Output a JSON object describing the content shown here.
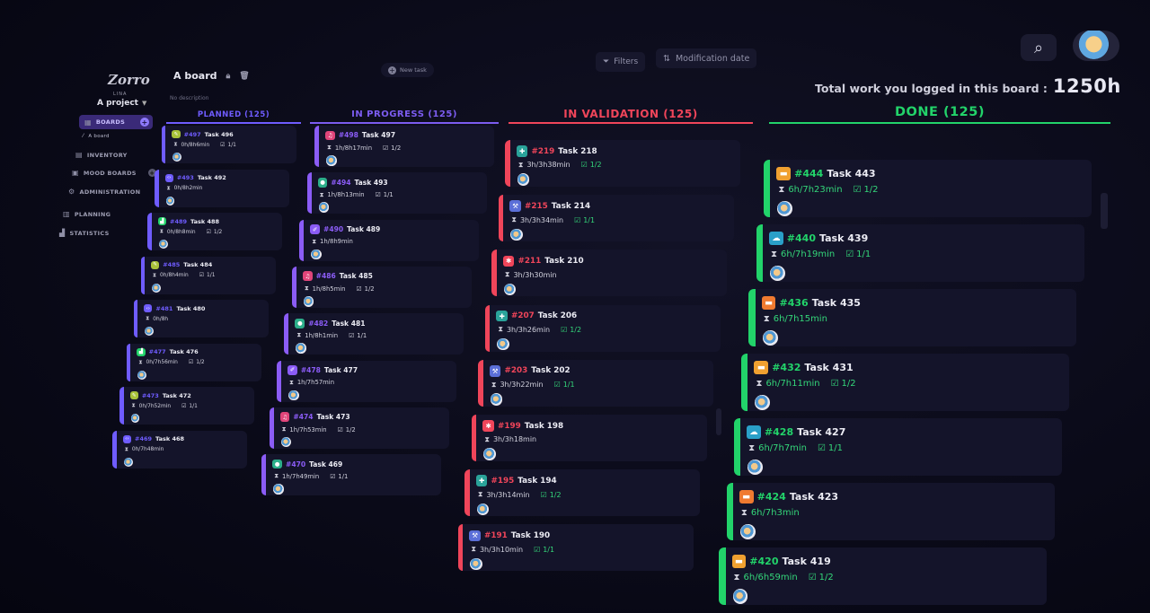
{
  "project": {
    "logo_text": "Zorro",
    "logo_sub": "LINA",
    "name": "A project"
  },
  "sidebar": {
    "boards": "BOARDS",
    "boards_sub": "A board",
    "inventory": "INVENTORY",
    "moodboards": "MOOD BOARDS",
    "administration": "ADMINISTRATION",
    "planning": "PLANNING",
    "statistics": "STATISTICS"
  },
  "header": {
    "board_title": "A board",
    "board_description": "No description",
    "new_task": "New task",
    "filters": "Filters",
    "modification_date": "Modification date",
    "total_work_label": "Total work you logged in this board :",
    "total_work_value": "1250h"
  },
  "colors": {
    "planned": "#6f5cff",
    "in_progress": "#8b5cf6",
    "in_validation": "#f0455a",
    "done": "#22d36a",
    "bg": "#0a0a18",
    "card": "#14142a"
  },
  "columns": [
    {
      "key": "planned",
      "header": "PLANNED (125)",
      "cards": [
        {
          "num": "#497",
          "title": "Task 496",
          "time": "0h/8h6min",
          "check": "1/1",
          "icon": "brush",
          "icon_color": "#a8c23a"
        },
        {
          "num": "#493",
          "title": "Task 492",
          "time": "0h/8h2min",
          "check": "",
          "icon": "code",
          "icon_color": "#6f5cff"
        },
        {
          "num": "#489",
          "title": "Task 488",
          "time": "0h/8h8min",
          "check": "1/2",
          "icon": "chart",
          "icon_color": "#22d36a"
        },
        {
          "num": "#485",
          "title": "Task 484",
          "time": "0h/8h4min",
          "check": "1/1",
          "icon": "brush",
          "icon_color": "#a8c23a"
        },
        {
          "num": "#481",
          "title": "Task 480",
          "time": "0h/8h",
          "check": "",
          "icon": "code",
          "icon_color": "#6f5cff"
        },
        {
          "num": "#477",
          "title": "Task 476",
          "time": "0h/7h56min",
          "check": "1/2",
          "icon": "chart",
          "icon_color": "#22d36a"
        },
        {
          "num": "#473",
          "title": "Task 472",
          "time": "0h/7h52min",
          "check": "1/1",
          "icon": "brush",
          "icon_color": "#a8c23a"
        },
        {
          "num": "#469",
          "title": "Task 468",
          "time": "0h/7h48min",
          "check": "",
          "icon": "code",
          "icon_color": "#6f5cff"
        }
      ]
    },
    {
      "key": "in_progress",
      "header": "IN PROGRESS (125)",
      "cards": [
        {
          "num": "#498",
          "title": "Task 497",
          "time": "1h/8h17min",
          "check": "1/2",
          "icon": "music",
          "icon_color": "#e0457a"
        },
        {
          "num": "#494",
          "title": "Task 493",
          "time": "1h/8h13min",
          "check": "1/1",
          "icon": "chat",
          "icon_color": "#2cae8a"
        },
        {
          "num": "#490",
          "title": "Task 489",
          "time": "1h/8h9min",
          "check": "",
          "icon": "pen",
          "icon_color": "#8b5cf6"
        },
        {
          "num": "#486",
          "title": "Task 485",
          "time": "1h/8h5min",
          "check": "1/2",
          "icon": "music",
          "icon_color": "#e0457a"
        },
        {
          "num": "#482",
          "title": "Task 481",
          "time": "1h/8h1min",
          "check": "1/1",
          "icon": "chat",
          "icon_color": "#2cae8a"
        },
        {
          "num": "#478",
          "title": "Task 477",
          "time": "1h/7h57min",
          "check": "",
          "icon": "pen",
          "icon_color": "#8b5cf6"
        },
        {
          "num": "#474",
          "title": "Task 473",
          "time": "1h/7h53min",
          "check": "1/2",
          "icon": "music",
          "icon_color": "#e0457a"
        },
        {
          "num": "#470",
          "title": "Task 469",
          "time": "1h/7h49min",
          "check": "1/1",
          "icon": "chat",
          "icon_color": "#2cae8a"
        }
      ]
    },
    {
      "key": "in_validation",
      "header": "IN VALIDATION (125)",
      "cards": [
        {
          "num": "#219",
          "title": "Task 218",
          "time": "3h/3h38min",
          "check": "1/2",
          "icon": "puzzle",
          "icon_color": "#2aa39a"
        },
        {
          "num": "#215",
          "title": "Task 214",
          "time": "3h/3h34min",
          "check": "1/1",
          "icon": "wrench",
          "icon_color": "#5b6fd8"
        },
        {
          "num": "#211",
          "title": "Task 210",
          "time": "3h/3h30min",
          "check": "",
          "icon": "bug",
          "icon_color": "#f0455a"
        },
        {
          "num": "#207",
          "title": "Task 206",
          "time": "3h/3h26min",
          "check": "1/2",
          "icon": "puzzle",
          "icon_color": "#2aa39a"
        },
        {
          "num": "#203",
          "title": "Task 202",
          "time": "3h/3h22min",
          "check": "1/1",
          "icon": "wrench",
          "icon_color": "#5b6fd8"
        },
        {
          "num": "#199",
          "title": "Task 198",
          "time": "3h/3h18min",
          "check": "",
          "icon": "bug",
          "icon_color": "#f0455a"
        },
        {
          "num": "#195",
          "title": "Task 194",
          "time": "3h/3h14min",
          "check": "1/2",
          "icon": "puzzle",
          "icon_color": "#2aa39a"
        },
        {
          "num": "#191",
          "title": "Task 190",
          "time": "3h/3h10min",
          "check": "1/1",
          "icon": "wrench",
          "icon_color": "#5b6fd8"
        }
      ]
    },
    {
      "key": "done",
      "header": "DONE (125)",
      "cards": [
        {
          "num": "#444",
          "title": "Task 443",
          "time": "6h/7h23min",
          "check": "1/2",
          "icon": "folder",
          "icon_color": "#f0a030"
        },
        {
          "num": "#440",
          "title": "Task 439",
          "time": "6h/7h19min",
          "check": "1/1",
          "icon": "cloud",
          "icon_color": "#2aa0c8"
        },
        {
          "num": "#436",
          "title": "Task 435",
          "time": "6h/7h15min",
          "check": "",
          "icon": "folder",
          "icon_color": "#f07a30"
        },
        {
          "num": "#432",
          "title": "Task 431",
          "time": "6h/7h11min",
          "check": "1/2",
          "icon": "folder",
          "icon_color": "#f0a030"
        },
        {
          "num": "#428",
          "title": "Task 427",
          "time": "6h/7h7min",
          "check": "1/1",
          "icon": "cloud",
          "icon_color": "#2aa0c8"
        },
        {
          "num": "#424",
          "title": "Task 423",
          "time": "6h/7h3min",
          "check": "",
          "icon": "folder",
          "icon_color": "#f07a30"
        },
        {
          "num": "#420",
          "title": "Task 419",
          "time": "6h/6h59min",
          "check": "1/2",
          "icon": "folder",
          "icon_color": "#f0a030"
        }
      ]
    }
  ]
}
